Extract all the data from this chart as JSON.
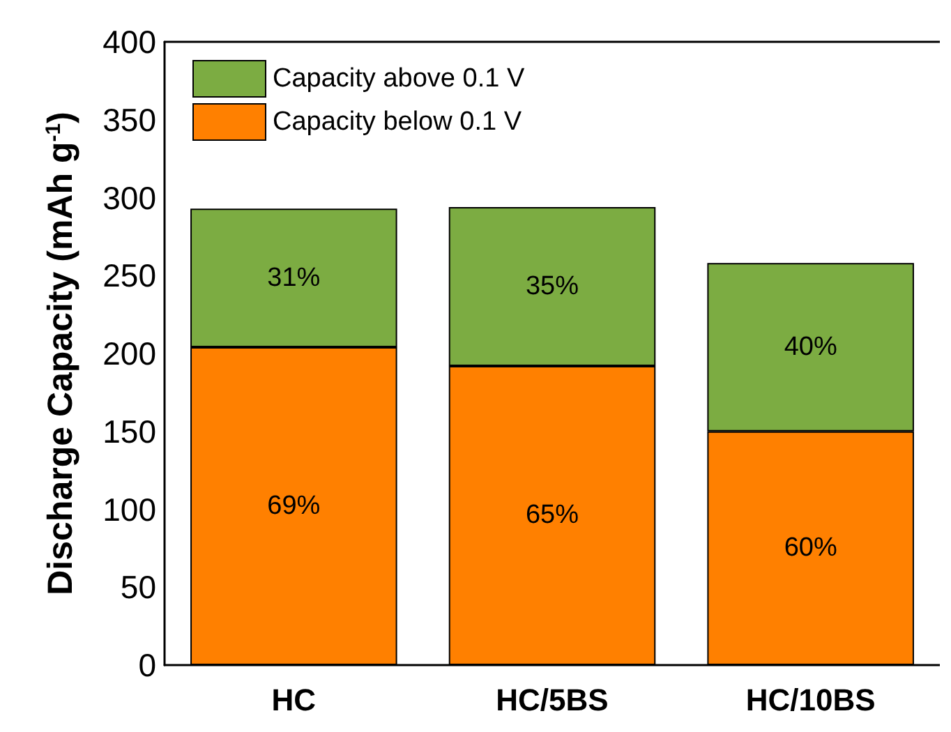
{
  "chart_data": {
    "type": "bar",
    "stacked": true,
    "ylabel": "Discharge Capacity (mAh g$^{-1}$)",
    "categories": [
      "HC",
      "HC/5BS",
      "HC/10BS"
    ],
    "series": [
      {
        "name": "Capacity below 0.1 V",
        "color": "#ff8000",
        "values": [
          204,
          192,
          150
        ]
      },
      {
        "name": "Capacity above 0.1 V",
        "color": "#7cac42",
        "values": [
          89,
          102,
          108
        ]
      }
    ],
    "annotations": [
      "69%",
      "65%",
      "60%",
      "31%",
      "35%",
      "40%"
    ],
    "ylim": [
      0,
      400
    ],
    "yticks": [
      0,
      50,
      100,
      150,
      200,
      250,
      300,
      350,
      400
    ],
    "legend": "top left"
  }
}
